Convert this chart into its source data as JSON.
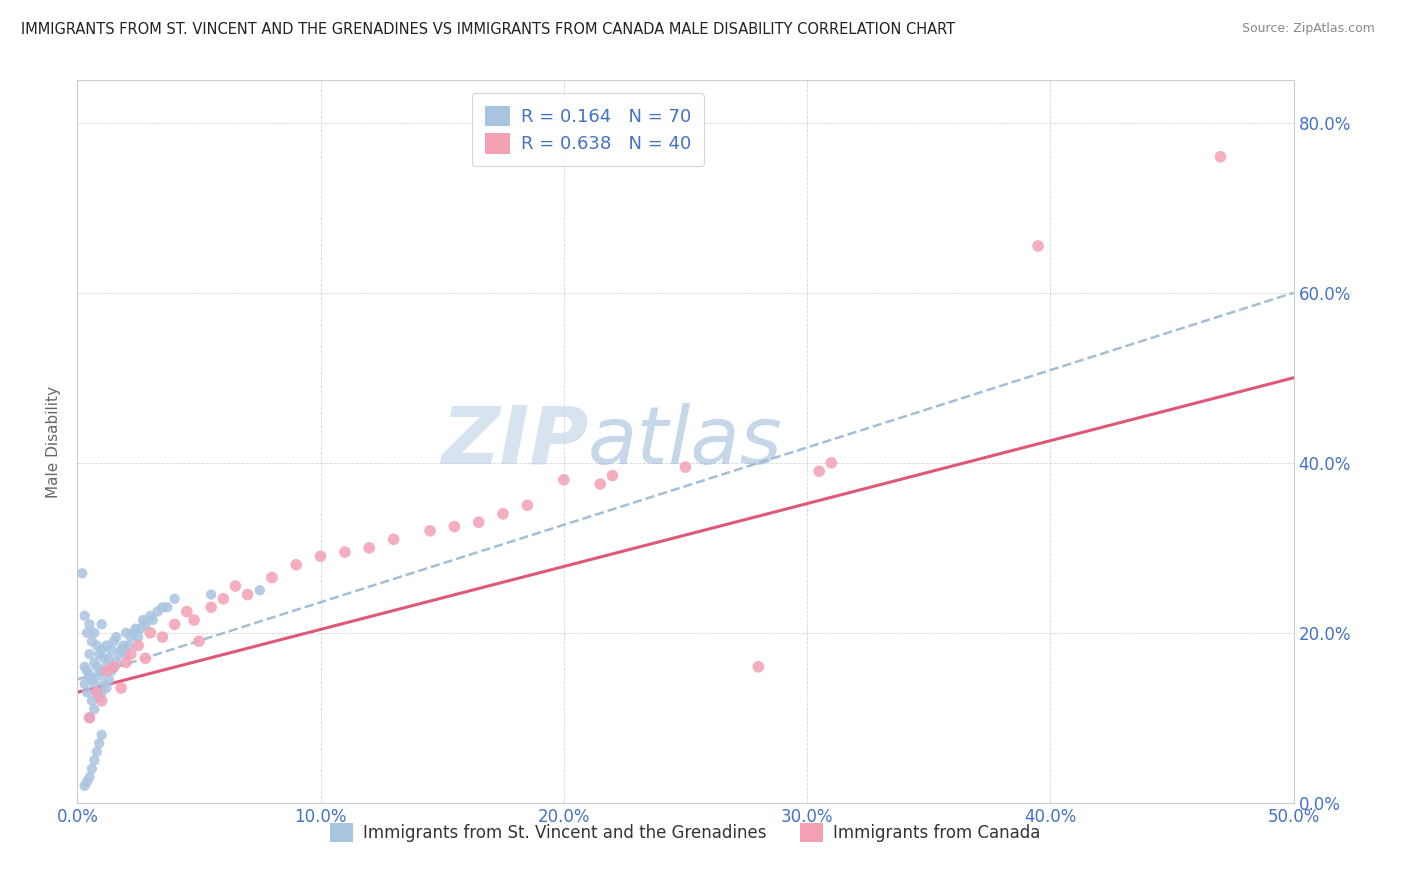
{
  "title": "IMMIGRANTS FROM ST. VINCENT AND THE GRENADINES VS IMMIGRANTS FROM CANADA MALE DISABILITY CORRELATION CHART",
  "source": "Source: ZipAtlas.com",
  "ylabel": "Male Disability",
  "xlim": [
    0.0,
    0.5
  ],
  "ylim": [
    0.0,
    0.85
  ],
  "yticks": [
    0.0,
    0.2,
    0.4,
    0.6,
    0.8
  ],
  "xticks": [
    0.0,
    0.1,
    0.2,
    0.3,
    0.4,
    0.5
  ],
  "series1_name": "Immigrants from St. Vincent and the Grenadines",
  "series1_R": 0.164,
  "series1_N": 70,
  "series1_color": "#a8c4e0",
  "series1_trend_color": "#99b8d4",
  "series2_name": "Immigrants from Canada",
  "series2_R": 0.638,
  "series2_N": 40,
  "series2_color": "#f4a0b5",
  "series2_trend_color": "#e05878",
  "title_color": "#222222",
  "axis_color": "#4472c4",
  "grid_color": "#cccccc",
  "background_color": "#ffffff",
  "watermark_zip": "ZIP",
  "watermark_atlas": "atlas",
  "series1_x": [
    0.002,
    0.003,
    0.003,
    0.003,
    0.004,
    0.004,
    0.004,
    0.005,
    0.005,
    0.005,
    0.005,
    0.006,
    0.006,
    0.006,
    0.007,
    0.007,
    0.007,
    0.007,
    0.008,
    0.008,
    0.008,
    0.009,
    0.009,
    0.009,
    0.01,
    0.01,
    0.01,
    0.01,
    0.011,
    0.011,
    0.012,
    0.012,
    0.012,
    0.013,
    0.013,
    0.014,
    0.014,
    0.015,
    0.015,
    0.016,
    0.016,
    0.017,
    0.018,
    0.019,
    0.02,
    0.02,
    0.021,
    0.022,
    0.023,
    0.024,
    0.025,
    0.026,
    0.027,
    0.028,
    0.03,
    0.031,
    0.033,
    0.035,
    0.037,
    0.04,
    0.003,
    0.004,
    0.005,
    0.006,
    0.007,
    0.008,
    0.009,
    0.01,
    0.055,
    0.075
  ],
  "series1_y": [
    0.27,
    0.14,
    0.16,
    0.22,
    0.13,
    0.155,
    0.2,
    0.1,
    0.15,
    0.175,
    0.21,
    0.12,
    0.145,
    0.19,
    0.11,
    0.14,
    0.165,
    0.2,
    0.13,
    0.16,
    0.185,
    0.125,
    0.15,
    0.175,
    0.13,
    0.155,
    0.18,
    0.21,
    0.14,
    0.17,
    0.135,
    0.16,
    0.185,
    0.145,
    0.17,
    0.155,
    0.18,
    0.16,
    0.19,
    0.165,
    0.195,
    0.175,
    0.18,
    0.185,
    0.175,
    0.2,
    0.185,
    0.195,
    0.2,
    0.205,
    0.195,
    0.205,
    0.215,
    0.21,
    0.22,
    0.215,
    0.225,
    0.23,
    0.23,
    0.24,
    0.02,
    0.025,
    0.03,
    0.04,
    0.05,
    0.06,
    0.07,
    0.08,
    0.245,
    0.25
  ],
  "series2_x": [
    0.005,
    0.008,
    0.01,
    0.012,
    0.015,
    0.018,
    0.02,
    0.022,
    0.025,
    0.028,
    0.03,
    0.035,
    0.04,
    0.045,
    0.048,
    0.05,
    0.055,
    0.06,
    0.065,
    0.07,
    0.08,
    0.09,
    0.1,
    0.11,
    0.12,
    0.13,
    0.145,
    0.155,
    0.165,
    0.175,
    0.185,
    0.2,
    0.215,
    0.22,
    0.25,
    0.28,
    0.305,
    0.31,
    0.395,
    0.47
  ],
  "series2_y": [
    0.1,
    0.13,
    0.12,
    0.155,
    0.16,
    0.135,
    0.165,
    0.175,
    0.185,
    0.17,
    0.2,
    0.195,
    0.21,
    0.225,
    0.215,
    0.19,
    0.23,
    0.24,
    0.255,
    0.245,
    0.265,
    0.28,
    0.29,
    0.295,
    0.3,
    0.31,
    0.32,
    0.325,
    0.33,
    0.34,
    0.35,
    0.38,
    0.375,
    0.385,
    0.395,
    0.16,
    0.39,
    0.4,
    0.655,
    0.76
  ],
  "trend1_x0": 0.0,
  "trend1_y0": 0.145,
  "trend1_x1": 0.5,
  "trend1_y1": 0.6,
  "trend2_x0": 0.0,
  "trend2_y0": 0.13,
  "trend2_x1": 0.5,
  "trend2_y1": 0.5
}
